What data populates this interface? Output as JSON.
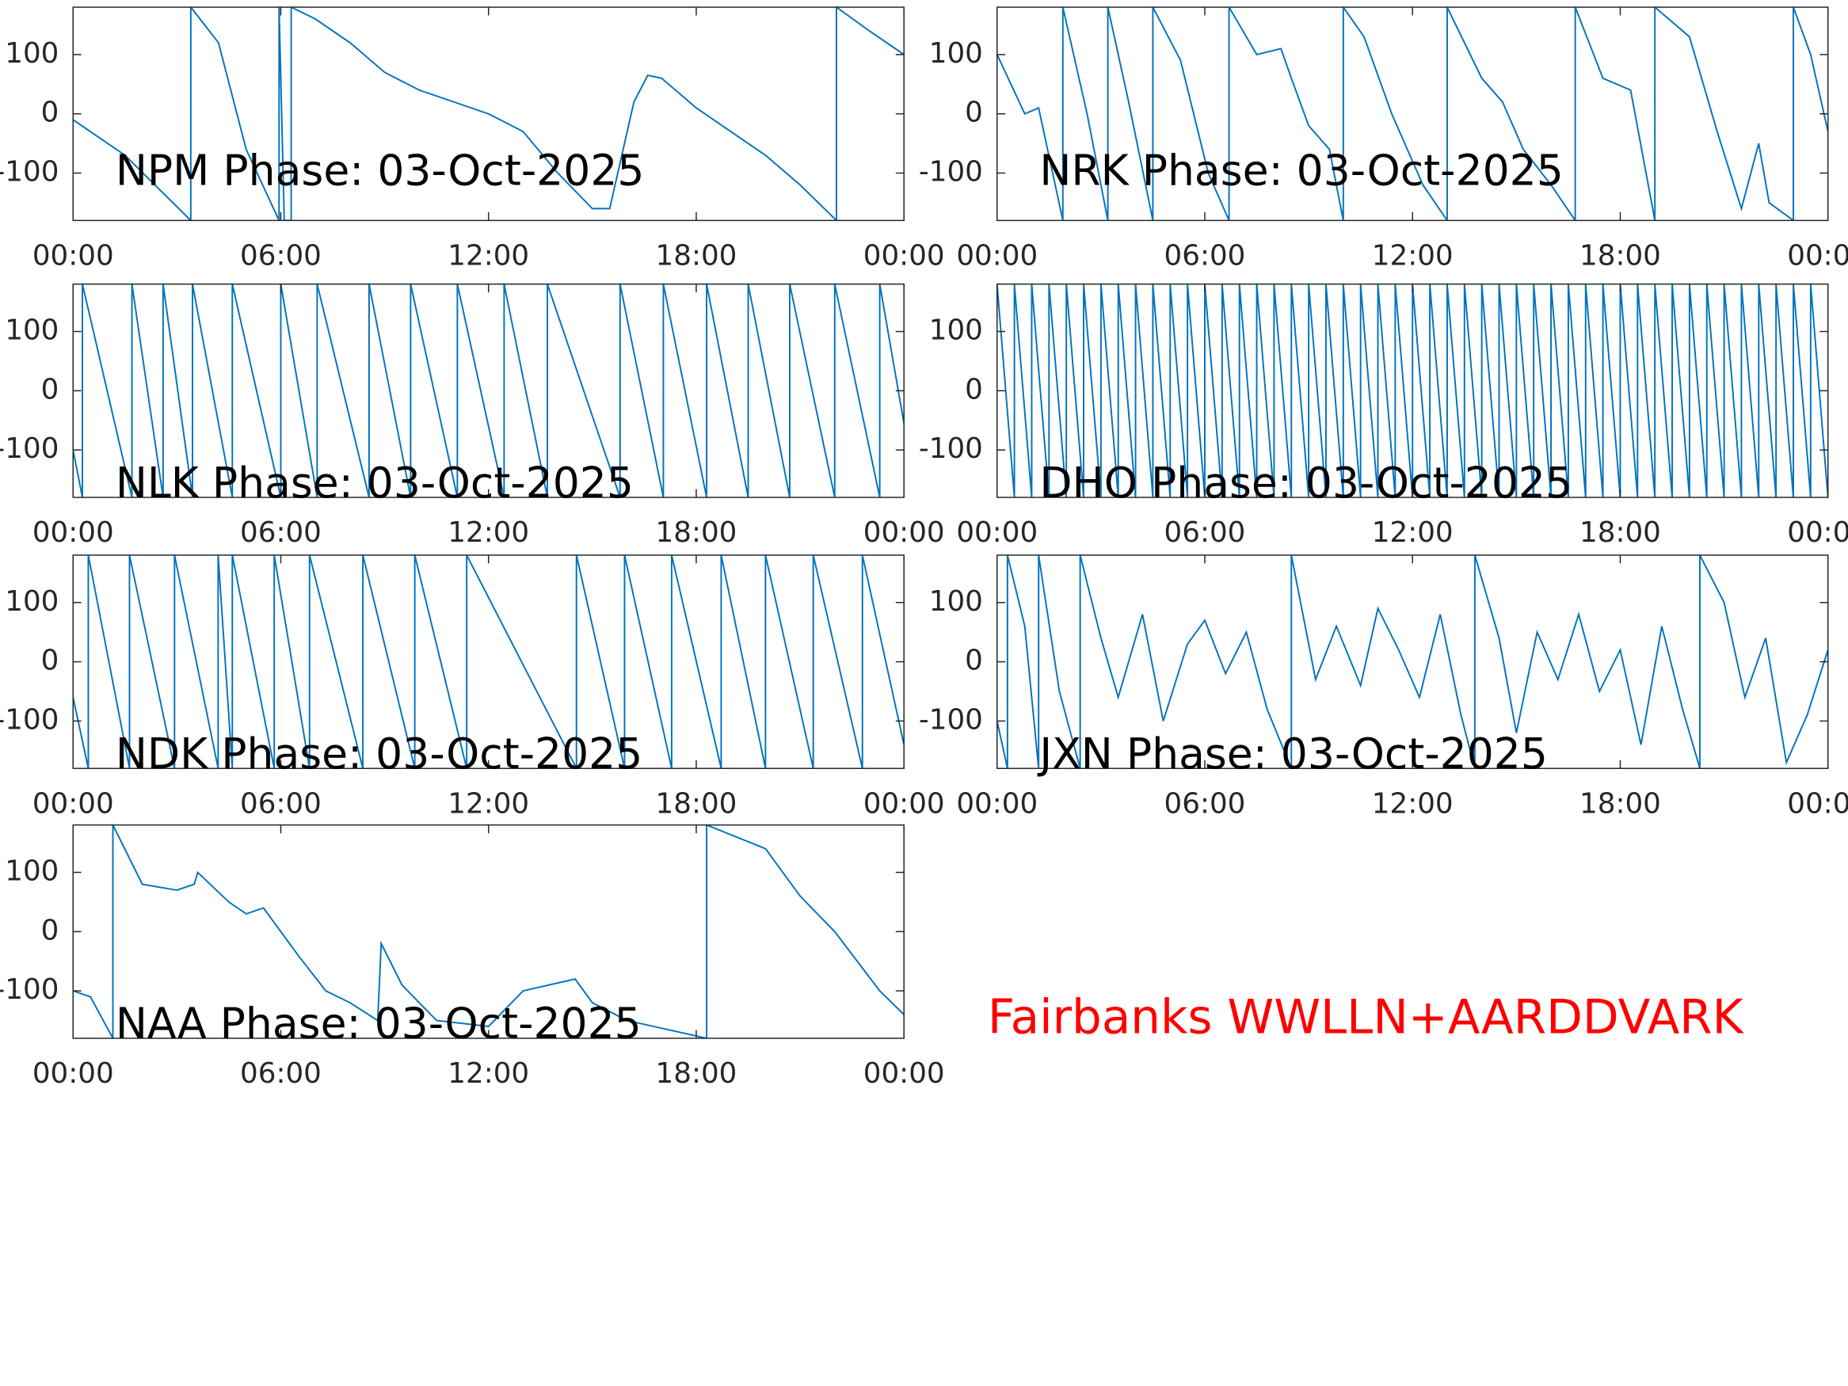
{
  "chart_data": [
    {
      "type": "line",
      "title": "NPM Phase: 03-Oct-2025",
      "color": "#0072bd",
      "xlim": [
        0,
        24
      ],
      "xticks": [
        {
          "value": 0,
          "label": "00:00"
        },
        {
          "value": 6,
          "label": "06:00"
        },
        {
          "value": 12,
          "label": "12:00"
        },
        {
          "value": 18,
          "label": "18:00"
        },
        {
          "value": 24,
          "label": "00:00"
        }
      ],
      "ylim": [
        -180,
        180
      ],
      "yticks": [
        -100,
        0,
        100
      ],
      "x": [
        0,
        1.5,
        3.4,
        3.4,
        4.2,
        5,
        5.95,
        5.95,
        6.1,
        6.3,
        6.3,
        7,
        8,
        9,
        10,
        11,
        12,
        13,
        14,
        15,
        15.5,
        16.2,
        16.6,
        17,
        18,
        19,
        20,
        21,
        22.05,
        22.05,
        23,
        24
      ],
      "values": [
        -10,
        -70,
        -180,
        180,
        120,
        -60,
        -180,
        180,
        -180,
        -180,
        180,
        160,
        120,
        70,
        40,
        20,
        0,
        -30,
        -100,
        -160,
        -160,
        20,
        65,
        60,
        10,
        -30,
        -70,
        -120,
        -180,
        180,
        140,
        100
      ]
    },
    {
      "type": "line",
      "title": "NRK Phase: 03-Oct-2025",
      "color": "#0072bd",
      "xlim": [
        0,
        24
      ],
      "xticks": [
        {
          "value": 0,
          "label": "00:00"
        },
        {
          "value": 6,
          "label": "06:00"
        },
        {
          "value": 12,
          "label": "12:00"
        },
        {
          "value": 18,
          "label": "18:00"
        },
        {
          "value": 24,
          "label": "00:00"
        }
      ],
      "ylim": [
        -180,
        180
      ],
      "yticks": [
        -100,
        0,
        100
      ],
      "x": [
        0,
        0.8,
        1.2,
        1.9,
        1.9,
        2.6,
        3.2,
        3.2,
        3.8,
        4.5,
        4.5,
        5.3,
        6.1,
        6.7,
        6.7,
        7.5,
        8.2,
        8.5,
        9.0,
        9.6,
        10.0,
        10.0,
        10.6,
        11.4,
        12.3,
        13.0,
        13.0,
        14.0,
        14.6,
        15.2,
        16.0,
        16.7,
        16.7,
        17.5,
        18.3,
        19.0,
        19.0,
        20.0,
        20.8,
        21.5,
        22.0,
        22.3,
        23.0,
        23.0,
        23.5,
        24
      ],
      "values": [
        100,
        0,
        10,
        -180,
        180,
        0,
        -180,
        180,
        20,
        -180,
        180,
        90,
        -100,
        -180,
        180,
        100,
        110,
        60,
        -20,
        -60,
        -180,
        180,
        130,
        0,
        -120,
        -180,
        180,
        60,
        20,
        -60,
        -120,
        -180,
        180,
        60,
        40,
        -180,
        180,
        130,
        -30,
        -160,
        -50,
        -150,
        -180,
        180,
        100,
        -30
      ]
    },
    {
      "type": "line",
      "title": "NLK Phase: 03-Oct-2025",
      "color": "#0072bd",
      "xlim": [
        0,
        24
      ],
      "xticks": [
        {
          "value": 0,
          "label": "00:00"
        },
        {
          "value": 6,
          "label": "06:00"
        },
        {
          "value": 12,
          "label": "12:00"
        },
        {
          "value": 18,
          "label": "18:00"
        },
        {
          "value": 24,
          "label": "00:00"
        }
      ],
      "ylim": [
        -180,
        180
      ],
      "yticks": [
        -100,
        0,
        100
      ],
      "x": [
        0,
        0.27,
        0.27,
        1.7,
        1.7,
        2.6,
        2.6,
        3.45,
        3.45,
        4.6,
        4.6,
        6.0,
        6.0,
        7.05,
        7.05,
        8.55,
        8.55,
        9.75,
        9.75,
        11.1,
        11.1,
        12.45,
        12.45,
        13.7,
        13.7,
        15.8,
        15.8,
        17.05,
        17.05,
        18.3,
        18.3,
        19.5,
        19.5,
        20.7,
        20.7,
        22.0,
        22.0,
        23.3,
        23.3,
        24
      ],
      "values": [
        -100,
        -180,
        180,
        -180,
        180,
        -180,
        180,
        -180,
        180,
        -180,
        180,
        -180,
        180,
        -180,
        180,
        -180,
        180,
        -180,
        180,
        -180,
        180,
        -180,
        180,
        -180,
        180,
        -180,
        180,
        -180,
        180,
        -180,
        180,
        -180,
        180,
        -180,
        180,
        -180,
        180,
        -180,
        180,
        -55
      ]
    },
    {
      "type": "line",
      "title": "DHO Phase: 03-Oct-2025",
      "color": "#0072bd",
      "xlim": [
        0,
        24
      ],
      "xticks": [
        {
          "value": 0,
          "label": "00:00"
        },
        {
          "value": 6,
          "label": "06:00"
        },
        {
          "value": 12,
          "label": "12:00"
        },
        {
          "value": 18,
          "label": "18:00"
        },
        {
          "value": 24,
          "label": "00:00"
        }
      ],
      "ylim": [
        -180,
        180
      ],
      "yticks": [
        -100,
        0,
        100
      ],
      "x": [
        0,
        0.5,
        0.5,
        1,
        1,
        1.5,
        1.5,
        2,
        2,
        2.5,
        2.5,
        3,
        3,
        3.5,
        3.5,
        4,
        4,
        4.5,
        4.5,
        5,
        5,
        5.5,
        5.5,
        6,
        6,
        6.5,
        6.5,
        7,
        7,
        7.5,
        7.5,
        8,
        8,
        8.5,
        8.5,
        9,
        9,
        9.5,
        9.5,
        10,
        10,
        10.5,
        10.5,
        11,
        11,
        11.5,
        11.5,
        12,
        12,
        12.5,
        12.5,
        13,
        13,
        13.5,
        13.5,
        14,
        14,
        14.5,
        14.5,
        15,
        15,
        15.5,
        15.5,
        16,
        16,
        16.5,
        16.5,
        17,
        17,
        17.5,
        17.5,
        18,
        18,
        18.5,
        18.5,
        19,
        19,
        19.5,
        19.5,
        20,
        20,
        20.5,
        20.5,
        21,
        21,
        21.5,
        21.5,
        22,
        22,
        22.5,
        22.5,
        23,
        23,
        23.5,
        23.5,
        24
      ],
      "values": [
        180,
        -180,
        180,
        -180,
        180,
        -180,
        180,
        -180,
        180,
        -180,
        180,
        -180,
        180,
        -180,
        180,
        -180,
        180,
        -180,
        180,
        -180,
        180,
        -180,
        180,
        -180,
        180,
        -180,
        180,
        -180,
        180,
        -180,
        180,
        -180,
        180,
        -180,
        180,
        -180,
        180,
        -180,
        180,
        -180,
        180,
        -180,
        180,
        -180,
        180,
        -180,
        180,
        -180,
        180,
        -180,
        180,
        -180,
        180,
        -180,
        180,
        -180,
        180,
        -180,
        180,
        -180,
        180,
        -180,
        180,
        -180,
        180,
        -180,
        180,
        -180,
        180,
        -180,
        180,
        -180,
        180,
        -180,
        180,
        -180,
        180,
        -180,
        180,
        -180,
        180,
        -180,
        180,
        -180,
        180,
        -180,
        180,
        -180,
        180,
        -180,
        180,
        -180,
        180,
        -180,
        180,
        -180
      ]
    },
    {
      "type": "line",
      "title": "NDK Phase: 03-Oct-2025",
      "color": "#0072bd",
      "xlim": [
        0,
        24
      ],
      "xticks": [
        {
          "value": 0,
          "label": "00:00"
        },
        {
          "value": 6,
          "label": "06:00"
        },
        {
          "value": 12,
          "label": "12:00"
        },
        {
          "value": 18,
          "label": "18:00"
        },
        {
          "value": 24,
          "label": "00:00"
        }
      ],
      "ylim": [
        -180,
        180
      ],
      "yticks": [
        -100,
        0,
        100
      ],
      "x": [
        0,
        0.44,
        0.44,
        1.63,
        1.63,
        2.93,
        2.93,
        4.19,
        4.19,
        4.6,
        4.6,
        5.81,
        5.81,
        6.83,
        6.83,
        8.37,
        8.37,
        9.87,
        9.87,
        11.37,
        11.37,
        14.54,
        14.54,
        15.93,
        15.93,
        17.29,
        17.29,
        18.72,
        18.72,
        20.0,
        20.0,
        21.38,
        21.38,
        22.8,
        22.8,
        24
      ],
      "values": [
        -60,
        -180,
        180,
        -180,
        180,
        -180,
        180,
        -180,
        180,
        -180,
        180,
        -180,
        180,
        -180,
        180,
        -180,
        180,
        -180,
        180,
        -180,
        180,
        -180,
        180,
        -180,
        180,
        -180,
        180,
        -180,
        180,
        -180,
        180,
        -180,
        180,
        -180,
        180,
        -140
      ]
    },
    {
      "type": "line",
      "title": "JXN Phase: 03-Oct-2025",
      "color": "#0072bd",
      "xlim": [
        0,
        24
      ],
      "xticks": [
        {
          "value": 0,
          "label": "00:00"
        },
        {
          "value": 6,
          "label": "06:00"
        },
        {
          "value": 12,
          "label": "12:00"
        },
        {
          "value": 18,
          "label": "18:00"
        },
        {
          "value": 24,
          "label": "00:00"
        }
      ],
      "ylim": [
        -180,
        180
      ],
      "yticks": [
        -100,
        0,
        100
      ],
      "x": [
        0,
        0.3,
        0.3,
        0.8,
        1.2,
        1.2,
        1.8,
        2.4,
        2.4,
        3.0,
        3.5,
        4.2,
        4.8,
        5.5,
        6.0,
        6.6,
        7.2,
        7.8,
        8.5,
        8.5,
        9.2,
        9.8,
        10.5,
        11.0,
        11.6,
        12.2,
        12.8,
        13.4,
        13.8,
        13.8,
        14.5,
        15.0,
        15.6,
        16.2,
        16.8,
        17.4,
        18.0,
        18.6,
        19.2,
        19.8,
        20.3,
        20.3,
        21.0,
        21.6,
        22.2,
        22.8,
        23.4,
        24
      ],
      "values": [
        -100,
        -180,
        180,
        60,
        -180,
        180,
        -50,
        -180,
        180,
        40,
        -60,
        80,
        -100,
        30,
        70,
        -20,
        50,
        -80,
        -180,
        180,
        -30,
        60,
        -40,
        90,
        20,
        -60,
        80,
        -90,
        -180,
        180,
        40,
        -120,
        50,
        -30,
        80,
        -50,
        20,
        -140,
        60,
        -80,
        -180,
        180,
        100,
        -60,
        40,
        -170,
        -90,
        20
      ]
    },
    {
      "type": "line",
      "title": "NAA Phase: 03-Oct-2025",
      "color": "#0072bd",
      "xlim": [
        0,
        24
      ],
      "xticks": [
        {
          "value": 0,
          "label": "00:00"
        },
        {
          "value": 6,
          "label": "06:00"
        },
        {
          "value": 12,
          "label": "12:00"
        },
        {
          "value": 18,
          "label": "18:00"
        },
        {
          "value": 24,
          "label": "00:00"
        }
      ],
      "ylim": [
        -180,
        180
      ],
      "yticks": [
        -100,
        0,
        100
      ],
      "x": [
        0,
        0.5,
        1.15,
        1.15,
        2,
        3,
        3.5,
        3.6,
        4.5,
        5,
        5.5,
        6.5,
        7.3,
        8,
        8.8,
        8.9,
        9.5,
        10.5,
        12,
        13,
        14.5,
        15,
        16,
        18.3,
        18.3,
        20,
        21,
        22,
        23.3,
        24
      ],
      "values": [
        -100,
        -110,
        -180,
        180,
        80,
        70,
        80,
        100,
        50,
        30,
        40,
        -40,
        -100,
        -120,
        -150,
        -20,
        -90,
        -150,
        -160,
        -100,
        -80,
        -120,
        -150,
        -180,
        180,
        140,
        60,
        0,
        -100,
        -140
      ]
    }
  ],
  "annotation": "Fairbanks WWLLN+AARDDVARK"
}
